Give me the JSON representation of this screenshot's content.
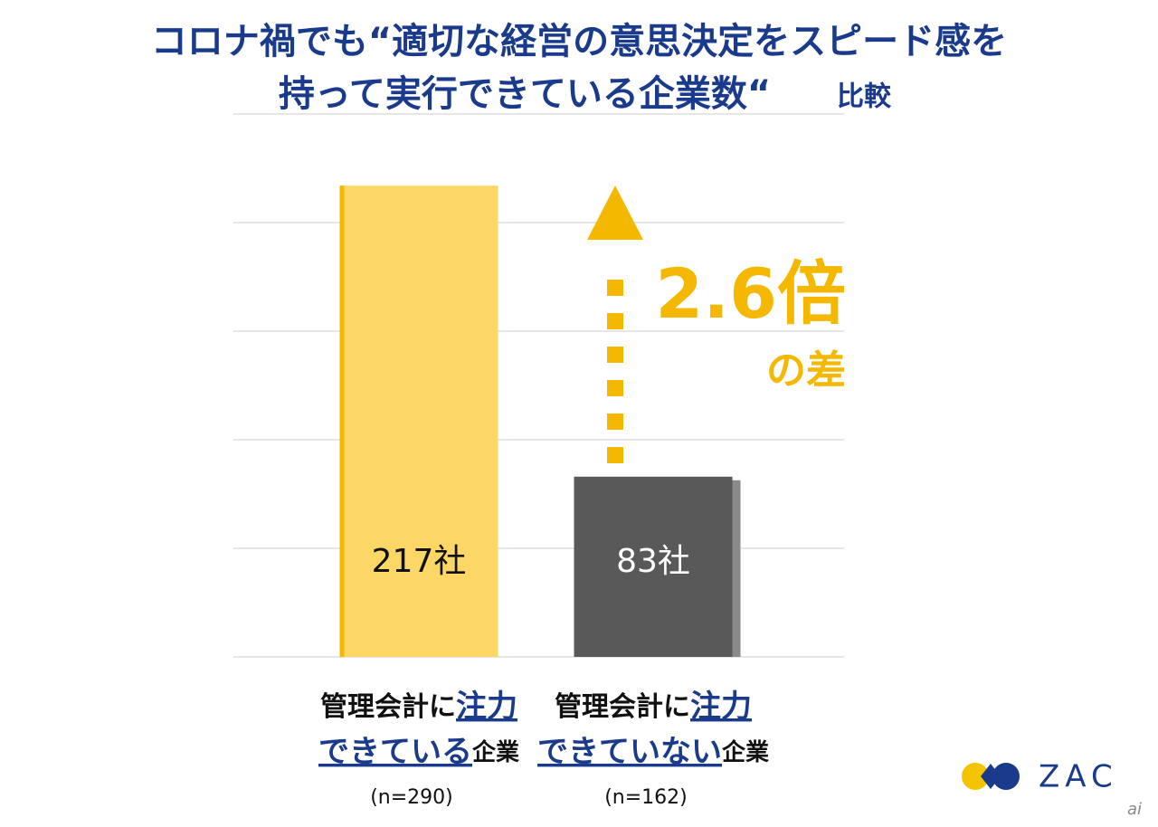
{
  "chart_data": {
    "type": "bar",
    "title_lines": [
      "コロナ禍でも“適切な経営の意思決定をスピード感を",
      "持って実行できている企業数“"
    ],
    "title_suffix": "比較",
    "categories": [
      [
        "管理会計に",
        "注力",
        "できている",
        "企業"
      ],
      [
        "管理会計に",
        "注力",
        "できていない",
        "企業"
      ]
    ],
    "emphasis_parts": [
      1,
      2
    ],
    "sample_labels": [
      "(n=290)",
      "(n=162)"
    ],
    "values": [
      217,
      83
    ],
    "value_labels": [
      "217社",
      "83社"
    ],
    "colors": [
      "#fcd766",
      "#595959"
    ],
    "edge_colors": [
      "#f5b800",
      "#8a8a8a"
    ],
    "label_colors": [
      "#111111",
      "#ffffff"
    ],
    "ylim": [
      0,
      250
    ],
    "yticks": [
      0,
      50,
      100,
      150,
      200,
      250
    ],
    "grid": true,
    "annotation": {
      "text": "2.6倍",
      "subtext": "の差",
      "color": "#f5b800"
    },
    "logo": "ZAC",
    "watermark": "ai"
  }
}
